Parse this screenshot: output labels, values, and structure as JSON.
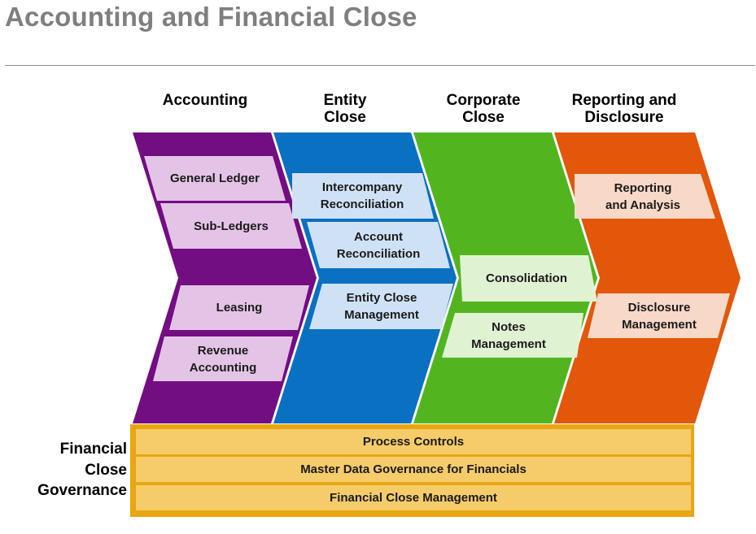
{
  "title": "Accounting and Financial Close",
  "columns": [
    {
      "heading": "Accounting",
      "color": "#730d82"
    },
    {
      "heading": "Entity\nClose",
      "color": "#0a70c2"
    },
    {
      "heading": "Corporate\nClose",
      "color": "#52b520"
    },
    {
      "heading": "Reporting and\nDisclosure",
      "color": "#e2570a"
    }
  ],
  "accounting": {
    "items": [
      "General Ledger",
      "Sub-Ledgers",
      "Leasing",
      "Revenue\nAccounting"
    ]
  },
  "entity_close": {
    "items": [
      "Intercompany\nReconciliation",
      "Account\nReconciliation",
      "Entity Close\nManagement"
    ]
  },
  "corporate_close": {
    "items": [
      "Consolidation",
      "Notes\nManagement"
    ]
  },
  "reporting": {
    "items": [
      "Reporting\nand Analysis",
      "Disclosure\nManagement"
    ]
  },
  "governance": {
    "label": "Financial\nClose\nGovernance",
    "bars": [
      "Process Controls",
      "Master Data Governance for Financials",
      "Financial Close Management"
    ]
  }
}
